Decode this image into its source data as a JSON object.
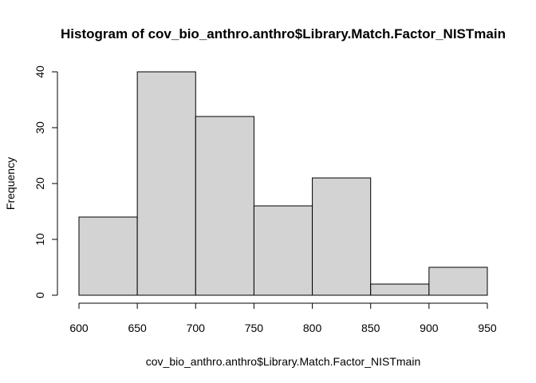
{
  "chart_data": {
    "type": "histogram",
    "title": "Histogram of cov_bio_anthro.anthro$Library.Match.Factor_NISTmain",
    "xlabel": "cov_bio_anthro.anthro$Library.Match.Factor_NISTmain",
    "ylabel": "Frequency",
    "bins": [
      600,
      650,
      700,
      750,
      800,
      850,
      900,
      950
    ],
    "values": [
      14,
      40,
      32,
      16,
      21,
      2,
      5
    ],
    "color": "#d3d3d3",
    "xlim": [
      600,
      950
    ],
    "xticks": [
      600,
      650,
      700,
      750,
      800,
      850,
      900,
      950
    ],
    "ylim": [
      0,
      40
    ],
    "yticks": [
      0,
      10,
      20,
      30,
      40
    ]
  }
}
